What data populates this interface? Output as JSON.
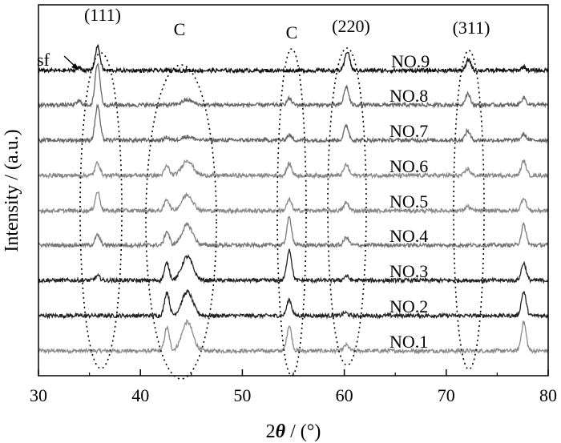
{
  "chart_data": {
    "type": "line",
    "xlabel_prefix": "2",
    "xlabel_symbol": "θ",
    "xlabel_suffix": " / (°)",
    "ylabel": "Intensity / (a.u.)",
    "xlim": [
      30,
      80
    ],
    "xticks": [
      "30",
      "40",
      "50",
      "60",
      "70",
      "80"
    ],
    "grid": false,
    "annotations": [
      {
        "text": "(111)",
        "x": 35.8
      },
      {
        "text": "C",
        "x": 44.0
      },
      {
        "text": "C",
        "x": 54.6
      },
      {
        "text": "(220)",
        "x": 60.3
      },
      {
        "text": "(311)",
        "x": 72.2
      },
      {
        "text": "sf",
        "x": 33.5
      }
    ],
    "series": [
      {
        "name": "NO.1",
        "color": "#8a8a8a",
        "peaks": [
          [
            42.6,
            3.2
          ],
          [
            44.6,
            4.0
          ],
          [
            54.6,
            3.5
          ],
          [
            60.2,
            0.8
          ],
          [
            77.6,
            4.0
          ]
        ]
      },
      {
        "name": "NO.2",
        "color": "#222222",
        "peaks": [
          [
            42.6,
            3.3
          ],
          [
            44.6,
            3.3
          ],
          [
            54.6,
            2.2
          ],
          [
            60.1,
            0.4
          ],
          [
            77.6,
            3.3
          ]
        ]
      },
      {
        "name": "NO.3",
        "color": "#222222",
        "peaks": [
          [
            35.8,
            0.6
          ],
          [
            42.6,
            2.4
          ],
          [
            44.6,
            3.3
          ],
          [
            54.6,
            4.3
          ],
          [
            60.2,
            0.6
          ],
          [
            77.6,
            2.4
          ]
        ]
      },
      {
        "name": "NO.4",
        "color": "#777777",
        "peaks": [
          [
            35.8,
            1.4
          ],
          [
            42.6,
            1.9
          ],
          [
            44.6,
            2.8
          ],
          [
            54.6,
            3.8
          ],
          [
            60.2,
            1.1
          ],
          [
            77.6,
            2.8
          ]
        ]
      },
      {
        "name": "NO.5",
        "color": "#888888",
        "peaks": [
          [
            35.8,
            2.6
          ],
          [
            42.6,
            1.6
          ],
          [
            44.6,
            2.2
          ],
          [
            54.6,
            1.5
          ],
          [
            60.2,
            1.1
          ],
          [
            72.1,
            0.6
          ],
          [
            77.6,
            1.8
          ]
        ]
      },
      {
        "name": "NO.6",
        "color": "#888888",
        "peaks": [
          [
            35.8,
            1.8
          ],
          [
            42.6,
            1.3
          ],
          [
            44.6,
            2.1
          ],
          [
            54.6,
            1.6
          ],
          [
            60.2,
            1.5
          ],
          [
            72.1,
            0.9
          ],
          [
            77.6,
            2.0
          ]
        ]
      },
      {
        "name": "NO.7",
        "color": "#666666",
        "peaks": [
          [
            35.8,
            4.8
          ],
          [
            42.6,
            0.4
          ],
          [
            44.6,
            0.5
          ],
          [
            54.6,
            0.7
          ],
          [
            60.2,
            2.0
          ],
          [
            72.1,
            1.3
          ],
          [
            77.6,
            0.8
          ]
        ]
      },
      {
        "name": "NO.8",
        "color": "#666666",
        "peaks": [
          [
            34.0,
            0.5
          ],
          [
            35.8,
            5.8
          ],
          [
            44.6,
            0.7
          ],
          [
            54.6,
            0.9
          ],
          [
            60.2,
            2.5
          ],
          [
            72.1,
            1.6
          ],
          [
            77.6,
            1.0
          ]
        ]
      },
      {
        "name": "NO.9",
        "color": "#111111",
        "peaks": [
          [
            34.0,
            0.4
          ],
          [
            35.8,
            3.4
          ],
          [
            60.3,
            2.7
          ],
          [
            72.2,
            1.5
          ],
          [
            77.6,
            0.5
          ]
        ]
      }
    ]
  }
}
